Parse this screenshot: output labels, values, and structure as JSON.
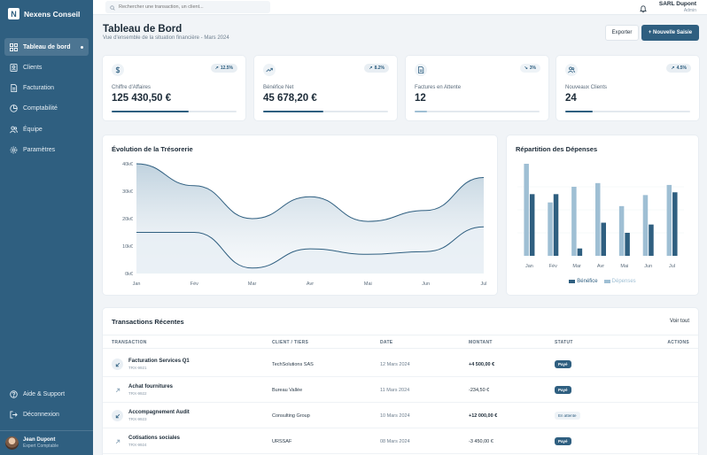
{
  "app": {
    "name": "Nexens Conseil",
    "logo_letter": "N"
  },
  "sidebar": {
    "items": [
      {
        "label": "Tableau de bord",
        "icon": "grid-icon",
        "active": true
      },
      {
        "label": "Clients",
        "icon": "contacts-icon"
      },
      {
        "label": "Facturation",
        "icon": "document-icon"
      },
      {
        "label": "Comptabilité",
        "icon": "pie-chart-icon"
      },
      {
        "label": "Équipe",
        "icon": "users-icon"
      },
      {
        "label": "Paramètres",
        "icon": "gear-icon"
      }
    ],
    "bottom": [
      {
        "label": "Aide & Support",
        "icon": "help-icon"
      },
      {
        "label": "Déconnexion",
        "icon": "logout-icon"
      }
    ],
    "user": {
      "name": "Jean Dupont",
      "role": "Expert Comptable"
    }
  },
  "topbar": {
    "search_placeholder": "Rechercher une transaction, un client...",
    "org": {
      "name": "SARL Dupont",
      "role": "Admin"
    }
  },
  "header": {
    "title": "Tableau de Bord",
    "subtitle": "Vue d'ensemble de la situation financière - Mars 2024",
    "export_label": "Exporter",
    "new_label": "+ Nouvelle Saisie"
  },
  "kpis": [
    {
      "label": "Chiffre d'Affaires",
      "value": "125 430,50 €",
      "badge": "12.5%",
      "trend": "up",
      "progress": 0.62,
      "icon": "dollar-icon"
    },
    {
      "label": "Bénéfice Net",
      "value": "45 678,20 €",
      "badge": "8.2%",
      "trend": "up",
      "progress": 0.48,
      "icon": "trend-up-icon"
    },
    {
      "label": "Factures en Attente",
      "value": "12",
      "badge": "3%",
      "trend": "down",
      "progress": 0.1,
      "icon": "file-icon"
    },
    {
      "label": "Nouveaux Clients",
      "value": "24",
      "badge": "4.5%",
      "trend": "up",
      "progress": 0.22,
      "icon": "users-icon"
    }
  ],
  "treasury": {
    "title": "Évolution de la Trésorerie",
    "chart_data": {
      "type": "area",
      "categories": [
        "Jan",
        "Fév",
        "Mar",
        "Avr",
        "Mai",
        "Jun",
        "Jul"
      ],
      "series": [
        {
          "values": [
            40000,
            32000,
            20000,
            28000,
            19000,
            23000,
            35000
          ]
        },
        {
          "values": [
            15000,
            15000,
            2000,
            9000,
            7000,
            8000,
            17000
          ]
        }
      ],
      "y_ticks": [
        "0k€",
        "10k€",
        "20k€",
        "30k€",
        "40k€"
      ],
      "ylim": [
        0,
        40000
      ],
      "colors": [
        "#2f5f80",
        "#dfe8ef"
      ]
    }
  },
  "expenses": {
    "title": "Répartition des Dépenses",
    "chart_data": {
      "type": "bar",
      "categories": [
        "Jan",
        "Fév",
        "Mar",
        "Avr",
        "Mai",
        "Jun",
        "Jul"
      ],
      "series": [
        {
          "name": "Dépenses",
          "values": [
            100,
            58,
            75,
            79,
            54,
            66,
            77
          ],
          "color": "#9fbfd4"
        },
        {
          "name": "Bénéfice",
          "values": [
            67,
            67,
            8,
            36,
            25,
            34,
            69
          ],
          "color": "#2f5f80"
        }
      ],
      "ylim": [
        0,
        100
      ],
      "legend": "bottom"
    },
    "legend": [
      {
        "name": "Bénéfice",
        "color": "#2f5f80"
      },
      {
        "name": "Dépenses",
        "color": "#9fbfd4"
      }
    ]
  },
  "transactions": {
    "title": "Transactions Récentes",
    "view_all": "Voir tout",
    "columns": [
      "TRANSACTION",
      "CLIENT / TIERS",
      "DATE",
      "MONTANT",
      "STATUT",
      "ACTIONS"
    ],
    "rows": [
      {
        "name": "Facturation Services Q1",
        "ref": "TRX-9921",
        "client": "TechSolutions SAS",
        "date": "12 Mars 2024",
        "amount": "+4 500,00 €",
        "status": "Payé",
        "status_type": "paid",
        "direction": "in"
      },
      {
        "name": "Achat fournitures",
        "ref": "TRX-9922",
        "client": "Bureau Vallée",
        "date": "11 Mars 2024",
        "amount": "-234,50 €",
        "status": "Payé",
        "status_type": "paid",
        "direction": "out"
      },
      {
        "name": "Accompagnement Audit",
        "ref": "TRX-9923",
        "client": "Consulting Group",
        "date": "10 Mars 2024",
        "amount": "+12 000,00 €",
        "status": "En attente",
        "status_type": "pending",
        "direction": "in"
      },
      {
        "name": "Cotisations sociales",
        "ref": "TRX-9924",
        "client": "URSSAF",
        "date": "08 Mars 2024",
        "amount": "-3 450,00 €",
        "status": "Payé",
        "status_type": "paid",
        "direction": "out"
      }
    ]
  }
}
